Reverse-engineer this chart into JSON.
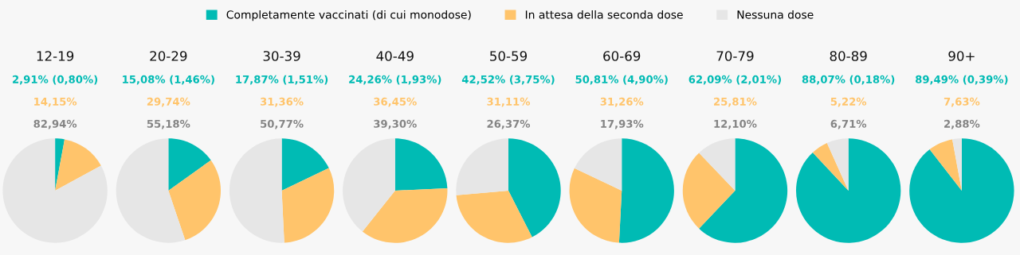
{
  "chart_data": [
    {
      "type": "pie",
      "title": "12-19",
      "legend": "top",
      "categories": [
        "Completamente vaccinati (di cui monodose)",
        "In attesa della seconda dose",
        "Nessuna dose"
      ],
      "colors": [
        "#00bbb4",
        "#ffc46b",
        "#e6e6e6"
      ],
      "values": [
        2.91,
        14.15,
        82.94
      ],
      "annotations": [
        "2,91% (0,80%)",
        "14,15%",
        "82,94%"
      ]
    },
    {
      "type": "pie",
      "title": "20-29",
      "colors": [
        "#00bbb4",
        "#ffc46b",
        "#e6e6e6"
      ],
      "values": [
        15.08,
        29.74,
        55.18
      ],
      "annotations": [
        "15,08% (1,46%)",
        "29,74%",
        "55,18%"
      ]
    },
    {
      "type": "pie",
      "title": "30-39",
      "colors": [
        "#00bbb4",
        "#ffc46b",
        "#e6e6e6"
      ],
      "values": [
        17.87,
        31.36,
        50.77
      ],
      "annotations": [
        "17,87% (1,51%)",
        "31,36%",
        "50,77%"
      ]
    },
    {
      "type": "pie",
      "title": "40-49",
      "colors": [
        "#00bbb4",
        "#ffc46b",
        "#e6e6e6"
      ],
      "values": [
        24.26,
        36.45,
        39.3
      ],
      "annotations": [
        "24,26% (1,93%)",
        "36,45%",
        "39,30%"
      ]
    },
    {
      "type": "pie",
      "title": "50-59",
      "colors": [
        "#00bbb4",
        "#ffc46b",
        "#e6e6e6"
      ],
      "values": [
        42.52,
        31.11,
        26.37
      ],
      "annotations": [
        "42,52% (3,75%)",
        "31,11%",
        "26,37%"
      ]
    },
    {
      "type": "pie",
      "title": "60-69",
      "colors": [
        "#00bbb4",
        "#ffc46b",
        "#e6e6e6"
      ],
      "values": [
        50.81,
        31.26,
        17.93
      ],
      "annotations": [
        "50,81% (4,90%)",
        "31,26%",
        "17,93%"
      ]
    },
    {
      "type": "pie",
      "title": "70-79",
      "colors": [
        "#00bbb4",
        "#ffc46b",
        "#e6e6e6"
      ],
      "values": [
        62.09,
        25.81,
        12.1
      ],
      "annotations": [
        "62,09% (2,01%)",
        "25,81%",
        "12,10%"
      ]
    },
    {
      "type": "pie",
      "title": "80-89",
      "colors": [
        "#00bbb4",
        "#ffc46b",
        "#e6e6e6"
      ],
      "values": [
        88.07,
        5.22,
        6.71
      ],
      "annotations": [
        "88,07% (0,18%)",
        "5,22%",
        "6,71%"
      ]
    },
    {
      "type": "pie",
      "title": "90+",
      "colors": [
        "#00bbb4",
        "#ffc46b",
        "#e6e6e6"
      ],
      "values": [
        89.49,
        7.63,
        2.88
      ],
      "annotations": [
        "89,49% (0,39%)",
        "7,63%",
        "2,88%"
      ]
    }
  ]
}
